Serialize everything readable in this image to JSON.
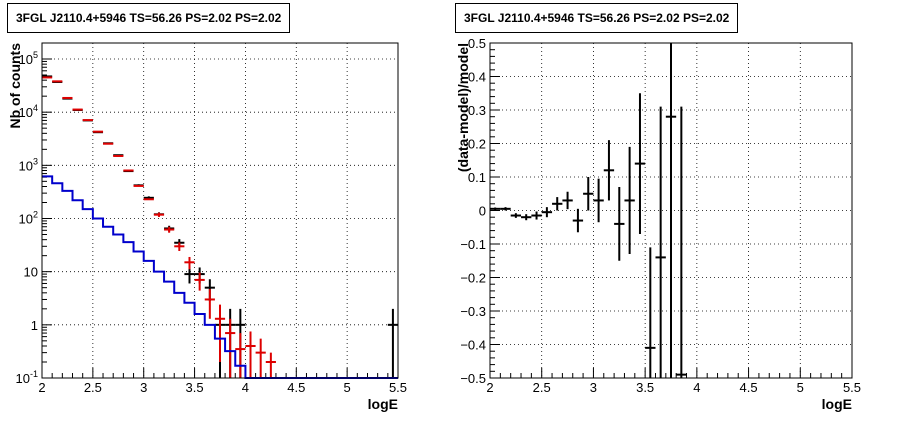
{
  "chart_data": [
    {
      "type": "scatter",
      "title": "3FGL J2110.4+5946 TS=56.26 PS=2.02 PS=2.02",
      "xlabel": "logE",
      "ylabel": "Nb of counts",
      "xlim": [
        2,
        5.5
      ],
      "ylim": [
        0.1,
        200000
      ],
      "yscale": "log",
      "grid": true,
      "x_ticks": [
        "2",
        "2.5",
        "3",
        "3.5",
        "4",
        "4.5",
        "5",
        "5.5"
      ],
      "y_ticks": [
        "10^{-1}",
        "1",
        "10",
        "10^{2}",
        "10^{3}",
        "10^{4}",
        "10^{5}"
      ],
      "series": [
        {
          "role": "data",
          "color": "#000000",
          "points": [
            {
              "x": 2.05,
              "y": 47000,
              "yerr": 220
            },
            {
              "x": 2.15,
              "y": 37000,
              "yerr": 190
            },
            {
              "x": 2.25,
              "y": 18000,
              "yerr": 135
            },
            {
              "x": 2.35,
              "y": 11000,
              "yerr": 105
            },
            {
              "x": 2.45,
              "y": 7000,
              "yerr": 84
            },
            {
              "x": 2.55,
              "y": 4200,
              "yerr": 65
            },
            {
              "x": 2.65,
              "y": 2600,
              "yerr": 51
            },
            {
              "x": 2.75,
              "y": 1550,
              "yerr": 40
            },
            {
              "x": 2.85,
              "y": 780,
              "yerr": 28
            },
            {
              "x": 2.95,
              "y": 420,
              "yerr": 20
            },
            {
              "x": 3.05,
              "y": 245,
              "yerr": 16
            },
            {
              "x": 3.15,
              "y": 120,
              "yerr": 11
            },
            {
              "x": 3.25,
              "y": 65,
              "yerr": 8
            },
            {
              "x": 3.35,
              "y": 35,
              "yerr": 6
            },
            {
              "x": 3.45,
              "y": 9,
              "yerr": 3
            },
            {
              "x": 3.55,
              "y": 9,
              "yerr": 3
            },
            {
              "x": 3.65,
              "y": 5,
              "yerr": 2.2
            },
            {
              "x": 3.75,
              "y": 1,
              "yerr": 1
            },
            {
              "x": 3.85,
              "y": 1,
              "yerr": 1
            },
            {
              "x": 3.95,
              "y": 1,
              "yerr": 1
            },
            {
              "x": 5.45,
              "y": 1,
              "yerr": 1
            }
          ]
        },
        {
          "role": "model",
          "color": "#dd0000",
          "points": [
            {
              "x": 2.05,
              "y": 45000,
              "yerr": 0
            },
            {
              "x": 2.15,
              "y": 38000,
              "yerr": 0
            },
            {
              "x": 2.25,
              "y": 18500,
              "yerr": 0
            },
            {
              "x": 2.35,
              "y": 11200,
              "yerr": 0
            },
            {
              "x": 2.45,
              "y": 7100,
              "yerr": 0
            },
            {
              "x": 2.55,
              "y": 4300,
              "yerr": 0
            },
            {
              "x": 2.65,
              "y": 2550,
              "yerr": 0
            },
            {
              "x": 2.75,
              "y": 1500,
              "yerr": 0
            },
            {
              "x": 2.85,
              "y": 800,
              "yerr": 0
            },
            {
              "x": 2.95,
              "y": 410,
              "yerr": 0
            },
            {
              "x": 3.05,
              "y": 230,
              "yerr": 0
            },
            {
              "x": 3.15,
              "y": 118,
              "yerr": 11
            },
            {
              "x": 3.25,
              "y": 62,
              "yerr": 8
            },
            {
              "x": 3.35,
              "y": 30,
              "yerr": 5.5
            },
            {
              "x": 3.45,
              "y": 15,
              "yerr": 3.9
            },
            {
              "x": 3.55,
              "y": 7,
              "yerr": 2.6
            },
            {
              "x": 3.65,
              "y": 3,
              "yerr": 1.7
            },
            {
              "x": 3.75,
              "y": 1.3,
              "yerr": 1.1
            },
            {
              "x": 3.85,
              "y": 0.7,
              "yerr": 0.6
            },
            {
              "x": 3.95,
              "y": 0.35,
              "yerr": 0.35
            },
            {
              "x": 4.05,
              "y": 0.4,
              "yerr": 0.35
            },
            {
              "x": 4.15,
              "y": 0.3,
              "yerr": 0.25
            },
            {
              "x": 4.25,
              "y": 0.2,
              "yerr": 0.1
            }
          ]
        },
        {
          "role": "component",
          "color": "#0000cc",
          "style": "step",
          "bin_width": 0.1,
          "points": [
            {
              "x": 2.05,
              "y": 620
            },
            {
              "x": 2.15,
              "y": 460
            },
            {
              "x": 2.25,
              "y": 330
            },
            {
              "x": 2.35,
              "y": 220
            },
            {
              "x": 2.45,
              "y": 150
            },
            {
              "x": 2.55,
              "y": 100
            },
            {
              "x": 2.65,
              "y": 70
            },
            {
              "x": 2.75,
              "y": 50
            },
            {
              "x": 2.85,
              "y": 36
            },
            {
              "x": 2.95,
              "y": 24
            },
            {
              "x": 3.05,
              "y": 16
            },
            {
              "x": 3.15,
              "y": 10
            },
            {
              "x": 3.25,
              "y": 6.5
            },
            {
              "x": 3.35,
              "y": 4
            },
            {
              "x": 3.45,
              "y": 2.6
            },
            {
              "x": 3.55,
              "y": 1.6
            },
            {
              "x": 3.65,
              "y": 1
            },
            {
              "x": 3.75,
              "y": 0.55
            },
            {
              "x": 3.85,
              "y": 0.32
            },
            {
              "x": 3.95,
              "y": 0.17
            },
            {
              "x": 4.05,
              "y": 0.1
            },
            {
              "x": 4.15,
              "y": 0.1
            },
            {
              "x": 4.25,
              "y": 0.1
            },
            {
              "x": 4.35,
              "y": 0.1
            },
            {
              "x": 4.45,
              "y": 0.1
            },
            {
              "x": 4.55,
              "y": 0.1
            },
            {
              "x": 4.65,
              "y": 0.1
            },
            {
              "x": 4.75,
              "y": 0.1
            },
            {
              "x": 4.85,
              "y": 0.1
            },
            {
              "x": 4.95,
              "y": 0.1
            },
            {
              "x": 5.05,
              "y": 0.1
            },
            {
              "x": 5.15,
              "y": 0.1
            },
            {
              "x": 5.25,
              "y": 0.1
            },
            {
              "x": 5.35,
              "y": 0.1
            },
            {
              "x": 5.45,
              "y": 0.1
            }
          ]
        }
      ]
    },
    {
      "type": "scatter",
      "title": "3FGL J2110.4+5946 TS=56.26 PS=2.02 PS=2.02",
      "xlabel": "logE",
      "ylabel": "(data-model)/model",
      "xlim": [
        2,
        5.5
      ],
      "ylim": [
        -0.5,
        0.5
      ],
      "grid": true,
      "x_ticks": [
        "2",
        "2.5",
        "3",
        "3.5",
        "4",
        "4.5",
        "5",
        "5.5"
      ],
      "y_ticks": [
        "−0.5",
        "−0.4",
        "−0.3",
        "−0.2",
        "−0.1",
        "0",
        "0.1",
        "0.2",
        "0.3",
        "0.4",
        "0.5"
      ],
      "series": [
        {
          "role": "residuals",
          "color": "#000000",
          "points": [
            {
              "x": 2.05,
              "y": 0.005,
              "yerr": 0.004
            },
            {
              "x": 2.15,
              "y": 0.005,
              "yerr": 0.005
            },
            {
              "x": 2.25,
              "y": -0.015,
              "yerr": 0.007
            },
            {
              "x": 2.35,
              "y": -0.02,
              "yerr": 0.009
            },
            {
              "x": 2.45,
              "y": -0.015,
              "yerr": 0.012
            },
            {
              "x": 2.55,
              "y": -0.005,
              "yerr": 0.015
            },
            {
              "x": 2.65,
              "y": 0.02,
              "yerr": 0.02
            },
            {
              "x": 2.75,
              "y": 0.03,
              "yerr": 0.026
            },
            {
              "x": 2.85,
              "y": -0.03,
              "yerr": 0.035
            },
            {
              "x": 2.95,
              "y": 0.05,
              "yerr": 0.05
            },
            {
              "x": 3.05,
              "y": 0.03,
              "yerr": 0.065
            },
            {
              "x": 3.15,
              "y": 0.12,
              "yerr": 0.09
            },
            {
              "x": 3.25,
              "y": -0.04,
              "yerr": 0.11
            },
            {
              "x": 3.35,
              "y": 0.03,
              "yerr": 0.16
            },
            {
              "x": 3.45,
              "y": 0.14,
              "yerr": 0.21
            },
            {
              "x": 3.55,
              "y": -0.41,
              "yerr": 0.3
            },
            {
              "x": 3.65,
              "y": -0.14,
              "yerr": 0.45
            },
            {
              "x": 3.75,
              "y": 0.28,
              "yerr": 0.8
            },
            {
              "x": 3.85,
              "y": -0.49,
              "yerr": 0.8
            }
          ]
        }
      ]
    }
  ]
}
